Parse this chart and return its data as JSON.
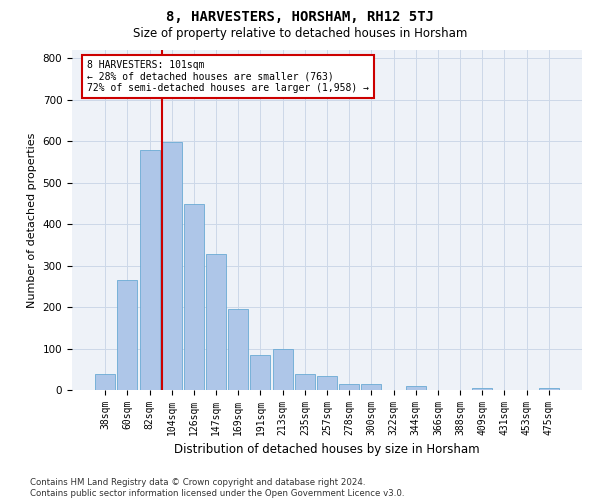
{
  "title": "8, HARVESTERS, HORSHAM, RH12 5TJ",
  "subtitle": "Size of property relative to detached houses in Horsham",
  "xlabel": "Distribution of detached houses by size in Horsham",
  "ylabel": "Number of detached properties",
  "categories": [
    "38sqm",
    "60sqm",
    "82sqm",
    "104sqm",
    "126sqm",
    "147sqm",
    "169sqm",
    "191sqm",
    "213sqm",
    "235sqm",
    "257sqm",
    "278sqm",
    "300sqm",
    "322sqm",
    "344sqm",
    "366sqm",
    "388sqm",
    "409sqm",
    "431sqm",
    "453sqm",
    "475sqm"
  ],
  "values": [
    38,
    265,
    580,
    598,
    448,
    328,
    195,
    85,
    100,
    38,
    33,
    15,
    14,
    0,
    10,
    0,
    0,
    5,
    0,
    0,
    5
  ],
  "bar_color": "#aec6e8",
  "bar_edge_color": "#6aaad4",
  "vline_color": "#cc0000",
  "vline_x_index": 3,
  "annotation_text": "8 HARVESTERS: 101sqm\n← 28% of detached houses are smaller (763)\n72% of semi-detached houses are larger (1,958) →",
  "annotation_box_color": "#ffffff",
  "annotation_box_edge": "#cc0000",
  "grid_color": "#ccd8e8",
  "background_color": "#eef2f8",
  "ylim": [
    0,
    820
  ],
  "yticks": [
    0,
    100,
    200,
    300,
    400,
    500,
    600,
    700,
    800
  ],
  "footer_line1": "Contains HM Land Registry data © Crown copyright and database right 2024.",
  "footer_line2": "Contains public sector information licensed under the Open Government Licence v3.0."
}
